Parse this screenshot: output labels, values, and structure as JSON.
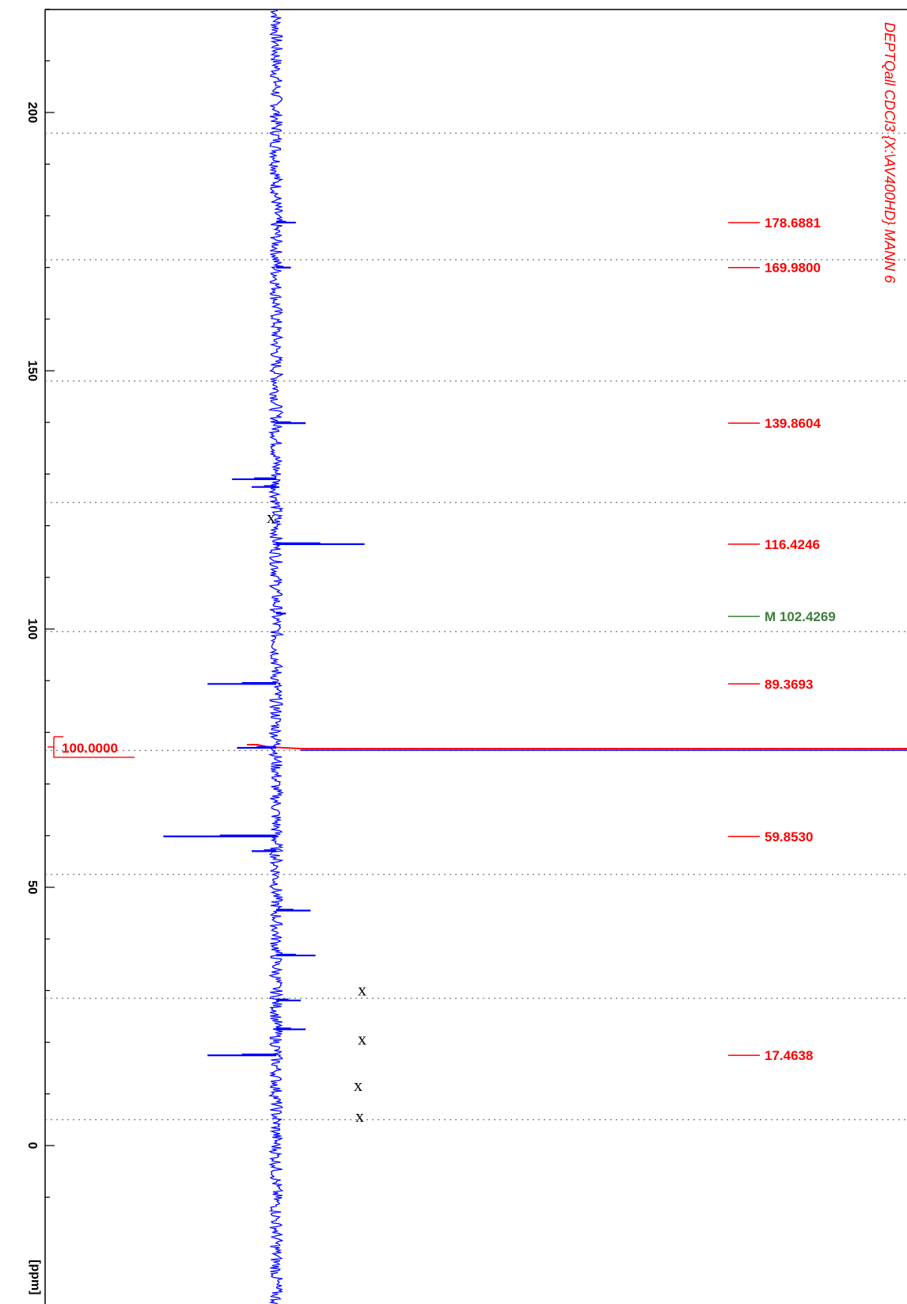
{
  "chart_data": {
    "type": "line",
    "title": "DEPTQall CDCl3 {X:\\AV400HD} MANN 6",
    "ylabel": "[ppm]",
    "ylim": [
      -12,
      224
    ],
    "yticks": [
      0,
      50,
      100,
      150,
      200
    ],
    "grid": "dotted",
    "trace_color": "#0000ff",
    "peak_color": "#ff0000",
    "marker_color": "#3c7d3c",
    "integral_color": "#ff0000",
    "peaks": [
      {
        "ppm": 178.6881,
        "intensity": 0.4,
        "label": "178.6881"
      },
      {
        "ppm": 169.98,
        "intensity": 0.3,
        "label": "169.9800"
      },
      {
        "ppm": 139.8604,
        "intensity": 0.6,
        "label": "139.8604"
      },
      {
        "ppm": 129.0,
        "intensity": -0.9,
        "label": ""
      },
      {
        "ppm": 127.5,
        "intensity": -0.5,
        "label": ""
      },
      {
        "ppm": 116.4246,
        "intensity": 1.8,
        "label": "116.4246"
      },
      {
        "ppm": 103.0,
        "intensity": 0.2,
        "label": ""
      },
      {
        "ppm": 89.3693,
        "intensity": -1.4,
        "label": "89.3693"
      },
      {
        "ppm": 77.0,
        "intensity": -0.8,
        "label": ""
      },
      {
        "ppm": 59.853,
        "intensity": -2.3,
        "label": "59.8530"
      },
      {
        "ppm": 57.0,
        "intensity": -0.5,
        "label": ""
      },
      {
        "ppm": 45.5,
        "intensity": 0.7,
        "label": ""
      },
      {
        "ppm": 36.8,
        "intensity": 0.8,
        "label": ""
      },
      {
        "ppm": 28.1,
        "intensity": 0.5,
        "label": ""
      },
      {
        "ppm": 22.5,
        "intensity": 0.6,
        "label": ""
      },
      {
        "ppm": 17.4638,
        "intensity": -1.4,
        "label": "17.4638"
      }
    ],
    "marker": {
      "ppm": 102.4269,
      "label": "M 102.4269"
    },
    "integral": {
      "ppm": 77.0,
      "label": "100.0000"
    },
    "x_marks": [
      {
        "ppm": 121.5,
        "label": "x"
      },
      {
        "ppm": 30.0,
        "label": "x"
      },
      {
        "ppm": 20.5,
        "label": "x"
      },
      {
        "ppm": 11.5,
        "label": "x"
      },
      {
        "ppm": 5.5,
        "label": "x"
      }
    ],
    "gridlines_ppm": [
      196,
      171.5,
      148,
      124.5,
      99.5,
      76.5,
      52.5,
      28.5,
      5
    ]
  }
}
